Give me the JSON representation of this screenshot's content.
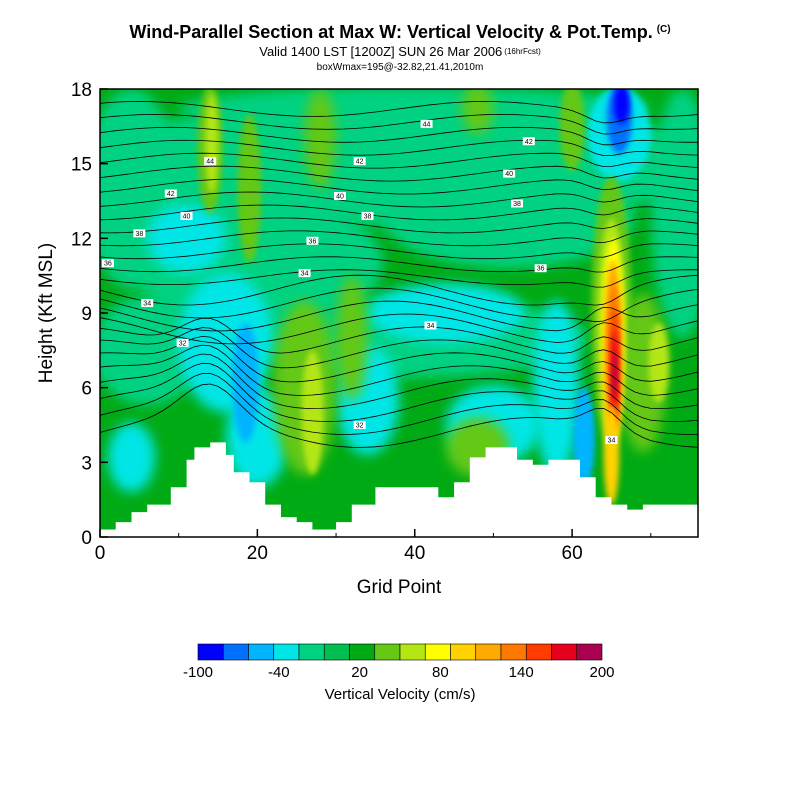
{
  "title": {
    "main": "Wind-Parallel Section at Max W: Vertical Velocity & Pot.Temp.",
    "mark": "(C)",
    "valid": "Valid 1400 LST [1200Z] SUN 26 Mar 2006",
    "valid_note": "(16hrFcst)",
    "boxinfo": "boxWmax=195@-32.82,21.41,2010m"
  },
  "chart_data": {
    "type": "heatmap",
    "title": "Wind-Parallel Section at Max W: Vertical Velocity & Pot.Temp.",
    "xlabel": "Grid Point",
    "ylabel": "Height (Kft MSL)",
    "xlim": [
      0,
      76
    ],
    "ylim": [
      0,
      18
    ],
    "xticks": [
      "0",
      "20",
      "40",
      "60"
    ],
    "xtick_values": [
      0,
      20,
      40,
      60
    ],
    "yticks": [
      "0",
      "3",
      "6",
      "9",
      "12",
      "15",
      "18"
    ],
    "ytick_values": [
      0,
      3,
      6,
      9,
      12,
      15,
      18
    ],
    "colorbar": {
      "label": "Vertical Velocity (cm/s)",
      "tick_labels": [
        "-100",
        "-40",
        "20",
        "80",
        "140",
        "200"
      ],
      "colors": [
        "#0000ff",
        "#0070ff",
        "#00b4ff",
        "#00e6e6",
        "#00d282",
        "#00be50",
        "#00aa14",
        "#64c814",
        "#b4e614",
        "#ffff00",
        "#ffd200",
        "#ffaa00",
        "#ff7800",
        "#ff3c00",
        "#e6001e",
        "#aa0050"
      ]
    },
    "features": [
      {
        "name": "max updraft",
        "x": 65,
        "y_kft": [
          1,
          12
        ],
        "peak_cm_s": 195,
        "peak_height_kft": 6.5
      },
      {
        "name": "downdraft",
        "x": 66,
        "y_kft": [
          15.5,
          18
        ],
        "min_cm_s": -100
      },
      {
        "name": "downdraft",
        "x": 18,
        "y_kft": [
          4,
          8
        ],
        "min_cm_s": -60
      },
      {
        "name": "updraft",
        "x": 14,
        "y_kft": [
          13,
          18
        ],
        "peak_cm_s": 90
      }
    ],
    "terrain_kft": {
      "x": [
        0,
        2,
        4,
        6,
        9,
        11,
        12,
        14,
        16,
        17,
        19,
        21,
        23,
        25,
        27,
        30,
        32,
        35,
        40,
        43,
        45,
        47,
        49,
        51,
        53,
        55,
        57,
        59,
        61,
        63,
        65,
        66,
        67,
        69,
        76
      ],
      "y": [
        0.3,
        0.6,
        1.0,
        1.3,
        2.0,
        3.1,
        3.6,
        3.8,
        3.3,
        2.6,
        2.2,
        1.3,
        0.8,
        0.6,
        0.3,
        0.6,
        1.3,
        2.0,
        2.0,
        1.6,
        2.2,
        3.2,
        3.6,
        3.6,
        3.1,
        2.9,
        3.1,
        3.1,
        2.4,
        1.6,
        1.3,
        1.3,
        1.1,
        1.3,
        1.3
      ]
    },
    "theta_contours": [
      {
        "value": "32",
        "y_kft_mean": 7.5
      },
      {
        "value": "34",
        "y_kft_mean": 9.2
      },
      {
        "value": "36",
        "y_kft_mean": 11.2
      },
      {
        "value": "38",
        "y_kft_mean": 12.3
      },
      {
        "value": "40",
        "y_kft_mean": 13.6
      },
      {
        "value": "42",
        "y_kft_mean": 15.1
      },
      {
        "value": "44",
        "y_kft_mean": 16.6
      }
    ],
    "contour_labels": [
      "44",
      "42",
      "40",
      "38",
      "36",
      "34",
      "32"
    ]
  }
}
